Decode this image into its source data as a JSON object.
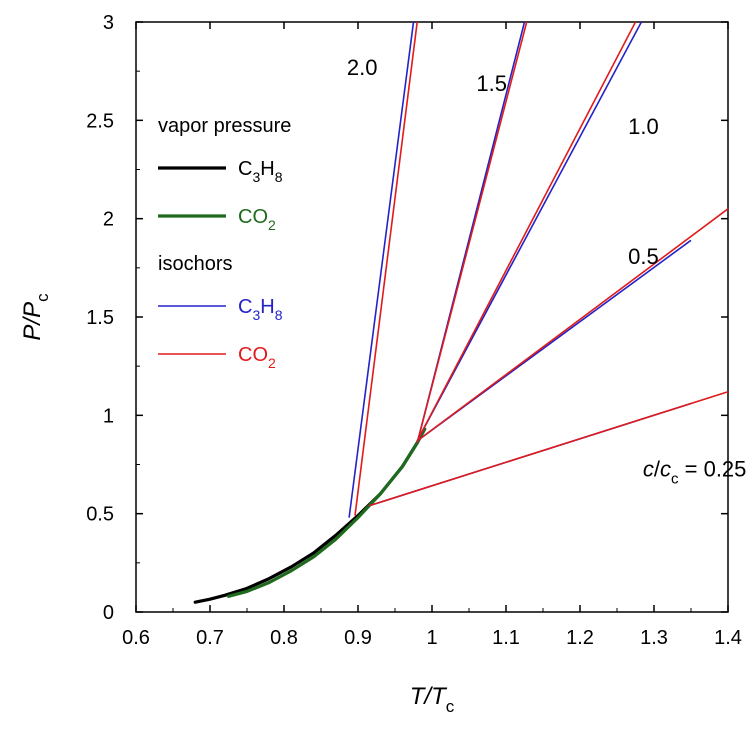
{
  "chart_data": {
    "type": "line",
    "xlabel": {
      "main": "T/T",
      "sub": "c"
    },
    "ylabel": {
      "main": "P/P",
      "sub": "c"
    },
    "xlim": [
      0.6,
      1.4
    ],
    "ylim": [
      0,
      3
    ],
    "xticks": [
      "0.6",
      "0.7",
      "0.8",
      "0.9",
      "1",
      "1.1",
      "1.2",
      "1.3",
      "1.4"
    ],
    "yticks": [
      "0",
      "0.5",
      "1",
      "1.5",
      "2",
      "2.5",
      "3"
    ],
    "grid": false,
    "legend": {
      "placement": "top-left",
      "groups": [
        {
          "heading": "vapor pressure",
          "items": [
            {
              "base": "C",
              "sub1": "3",
              "mid": "H",
              "sub2": "8",
              "color": "#000000",
              "series": "vp_c3h8"
            },
            {
              "base": "CO",
              "sub1": "2",
              "mid": "",
              "sub2": "",
              "color": "#1e6b1e",
              "series": "vp_co2"
            }
          ]
        },
        {
          "heading": "isochors",
          "items": [
            {
              "base": "C",
              "sub1": "3",
              "mid": "H",
              "sub2": "8",
              "color": "#2323c8",
              "series": "iso_c3h8"
            },
            {
              "base": "CO",
              "sub1": "2",
              "mid": "",
              "sub2": "",
              "color": "#e01b1b",
              "series": "iso_co2"
            }
          ]
        }
      ]
    },
    "vapor_pressure": [
      {
        "name": "C3H8",
        "color": "#000000",
        "points": [
          [
            0.68,
            0.05
          ],
          [
            0.7,
            0.065
          ],
          [
            0.72,
            0.085
          ],
          [
            0.75,
            0.12
          ],
          [
            0.78,
            0.17
          ],
          [
            0.81,
            0.23
          ],
          [
            0.84,
            0.3
          ],
          [
            0.87,
            0.39
          ],
          [
            0.9,
            0.49
          ],
          [
            0.93,
            0.6
          ],
          [
            0.96,
            0.74
          ],
          [
            0.98,
            0.86
          ],
          [
            0.99,
            0.93
          ]
        ]
      },
      {
        "name": "CO2",
        "color": "#1e6b1e",
        "points": [
          [
            0.725,
            0.08
          ],
          [
            0.75,
            0.105
          ],
          [
            0.78,
            0.15
          ],
          [
            0.81,
            0.21
          ],
          [
            0.84,
            0.28
          ],
          [
            0.87,
            0.37
          ],
          [
            0.9,
            0.48
          ],
          [
            0.93,
            0.6
          ],
          [
            0.96,
            0.74
          ],
          [
            0.98,
            0.86
          ],
          [
            0.99,
            0.93
          ]
        ]
      }
    ],
    "isochors": [
      {
        "substance": "C3H8",
        "density_ratio": 2.0,
        "color": "#2323c8",
        "points": [
          [
            0.888,
            0.48
          ],
          [
            0.975,
            3.0
          ]
        ]
      },
      {
        "substance": "CO2",
        "density_ratio": 2.0,
        "color": "#e01b1b",
        "points": [
          [
            0.896,
            0.49
          ],
          [
            0.98,
            3.0
          ]
        ]
      },
      {
        "substance": "C3H8",
        "density_ratio": 1.5,
        "color": "#2323c8",
        "points": [
          [
            0.98,
            0.86
          ],
          [
            1.125,
            3.0
          ]
        ]
      },
      {
        "substance": "CO2",
        "density_ratio": 1.5,
        "color": "#e01b1b",
        "points": [
          [
            0.98,
            0.86
          ],
          [
            1.128,
            3.0
          ]
        ]
      },
      {
        "substance": "C3H8",
        "density_ratio": 1.0,
        "color": "#2323c8",
        "points": [
          [
            0.98,
            0.87
          ],
          [
            1.283,
            3.0
          ]
        ]
      },
      {
        "substance": "CO2",
        "density_ratio": 1.0,
        "color": "#e01b1b",
        "points": [
          [
            0.98,
            0.87
          ],
          [
            1.275,
            3.0
          ]
        ]
      },
      {
        "substance": "C3H8",
        "density_ratio": 0.5,
        "color": "#2323c8",
        "points": [
          [
            0.98,
            0.87
          ],
          [
            1.35,
            1.89
          ]
        ]
      },
      {
        "substance": "CO2",
        "density_ratio": 0.5,
        "color": "#e01b1b",
        "points": [
          [
            0.98,
            0.87
          ],
          [
            1.4,
            2.05
          ]
        ]
      },
      {
        "substance": "C3H8",
        "density_ratio": 0.25,
        "color": "#2323c8",
        "points": [
          [
            0.915,
            0.54
          ],
          [
            1.35,
            1.06
          ]
        ]
      },
      {
        "substance": "CO2",
        "density_ratio": 0.25,
        "color": "#e01b1b",
        "points": [
          [
            0.915,
            0.54
          ],
          [
            1.4,
            1.12
          ]
        ]
      }
    ],
    "annotations": [
      {
        "text": "2.0",
        "x": 0.885,
        "y": 2.73
      },
      {
        "text": "1.5",
        "x": 1.06,
        "y": 2.65
      },
      {
        "text": "1.0",
        "x": 1.265,
        "y": 2.43
      },
      {
        "text": "0.5",
        "x": 1.265,
        "y": 1.77
      },
      {
        "text": "",
        "rich": {
          "c": "c",
          "slash": "/",
          "cc": "c",
          "cc_sub": "c",
          "rest": " = 0.25"
        },
        "x": 1.285,
        "y": 0.69
      }
    ]
  }
}
